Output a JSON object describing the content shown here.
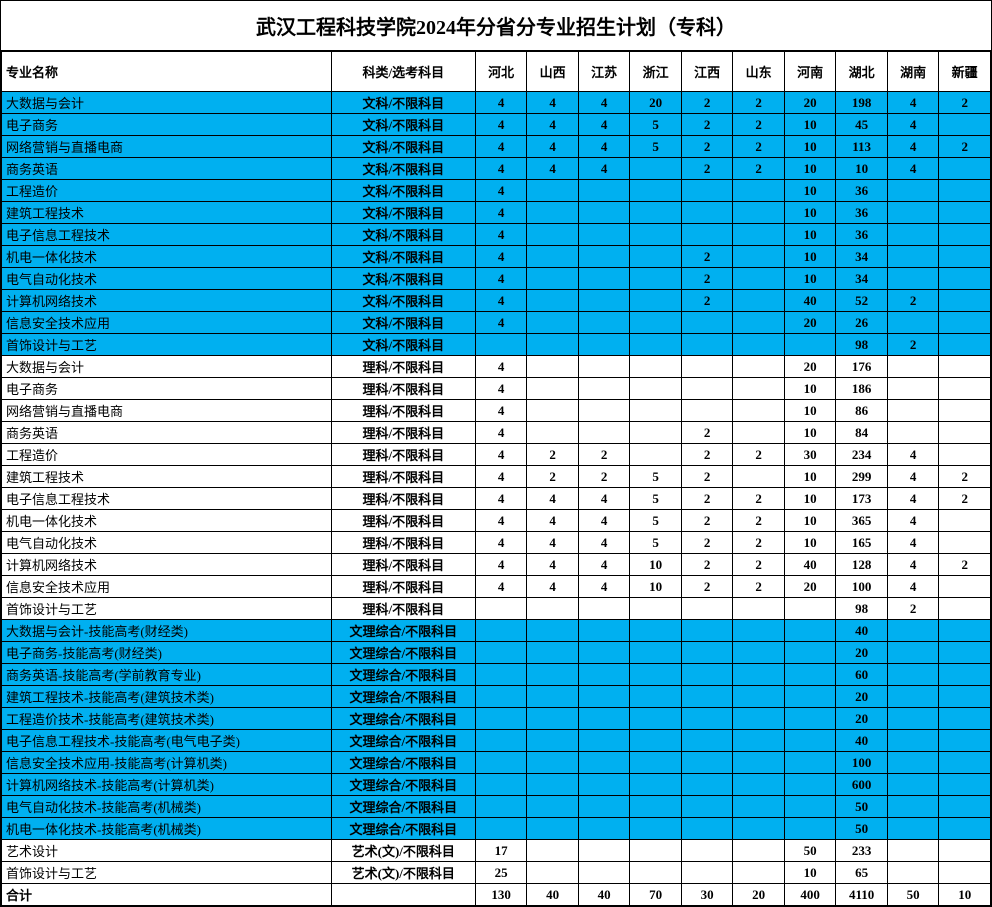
{
  "title": "武汉工程科技学院2024年分省分专业招生计划（专科）",
  "colors": {
    "highlight": "#00b0f0",
    "background": "#ffffff",
    "border": "#000000"
  },
  "columns": [
    {
      "key": "major",
      "label": "专业名称"
    },
    {
      "key": "subject",
      "label": "科类/选考科目"
    },
    {
      "key": "hebei",
      "label": "河北"
    },
    {
      "key": "shanxi",
      "label": "山西"
    },
    {
      "key": "jiangsu",
      "label": "江苏"
    },
    {
      "key": "zhejiang",
      "label": "浙江"
    },
    {
      "key": "jiangxi",
      "label": "江西"
    },
    {
      "key": "shandong",
      "label": "山东"
    },
    {
      "key": "henan",
      "label": "河南"
    },
    {
      "key": "hubei",
      "label": "湖北"
    },
    {
      "key": "hunan",
      "label": "湖南"
    },
    {
      "key": "xinjiang",
      "label": "新疆"
    }
  ],
  "rows": [
    {
      "bg": "blue",
      "major": "大数据与会计",
      "subject": "文科/不限科目",
      "values": [
        "4",
        "4",
        "4",
        "20",
        "2",
        "2",
        "20",
        "198",
        "4",
        "2"
      ]
    },
    {
      "bg": "blue",
      "major": "电子商务",
      "subject": "文科/不限科目",
      "values": [
        "4",
        "4",
        "4",
        "5",
        "2",
        "2",
        "10",
        "45",
        "4",
        ""
      ]
    },
    {
      "bg": "blue",
      "major": "网络营销与直播电商",
      "subject": "文科/不限科目",
      "values": [
        "4",
        "4",
        "4",
        "5",
        "2",
        "2",
        "10",
        "113",
        "4",
        "2"
      ]
    },
    {
      "bg": "blue",
      "major": "商务英语",
      "subject": "文科/不限科目",
      "values": [
        "4",
        "4",
        "4",
        "",
        "2",
        "2",
        "10",
        "10",
        "4",
        ""
      ]
    },
    {
      "bg": "blue",
      "major": "工程造价",
      "subject": "文科/不限科目",
      "values": [
        "4",
        "",
        "",
        "",
        "",
        "",
        "10",
        "36",
        "",
        ""
      ]
    },
    {
      "bg": "blue",
      "major": "建筑工程技术",
      "subject": "文科/不限科目",
      "values": [
        "4",
        "",
        "",
        "",
        "",
        "",
        "10",
        "36",
        "",
        ""
      ]
    },
    {
      "bg": "blue",
      "major": "电子信息工程技术",
      "subject": "文科/不限科目",
      "values": [
        "4",
        "",
        "",
        "",
        "",
        "",
        "10",
        "36",
        "",
        ""
      ]
    },
    {
      "bg": "blue",
      "major": "机电一体化技术",
      "subject": "文科/不限科目",
      "values": [
        "4",
        "",
        "",
        "",
        "2",
        "",
        "10",
        "34",
        "",
        ""
      ]
    },
    {
      "bg": "blue",
      "major": "电气自动化技术",
      "subject": "文科/不限科目",
      "values": [
        "4",
        "",
        "",
        "",
        "2",
        "",
        "10",
        "34",
        "",
        ""
      ]
    },
    {
      "bg": "blue",
      "major": "计算机网络技术",
      "subject": "文科/不限科目",
      "values": [
        "4",
        "",
        "",
        "",
        "2",
        "",
        "40",
        "52",
        "2",
        ""
      ]
    },
    {
      "bg": "blue",
      "major": "信息安全技术应用",
      "subject": "文科/不限科目",
      "values": [
        "4",
        "",
        "",
        "",
        "",
        "",
        "20",
        "26",
        "",
        ""
      ]
    },
    {
      "bg": "blue",
      "major": "首饰设计与工艺",
      "subject": "文科/不限科目",
      "values": [
        "",
        "",
        "",
        "",
        "",
        "",
        "",
        "98",
        "2",
        ""
      ]
    },
    {
      "bg": "white",
      "major": "大数据与会计",
      "subject": "理科/不限科目",
      "values": [
        "4",
        "",
        "",
        "",
        "",
        "",
        "20",
        "176",
        "",
        ""
      ]
    },
    {
      "bg": "white",
      "major": "电子商务",
      "subject": "理科/不限科目",
      "values": [
        "4",
        "",
        "",
        "",
        "",
        "",
        "10",
        "186",
        "",
        ""
      ]
    },
    {
      "bg": "white",
      "major": "网络营销与直播电商",
      "subject": "理科/不限科目",
      "values": [
        "4",
        "",
        "",
        "",
        "",
        "",
        "10",
        "86",
        "",
        ""
      ]
    },
    {
      "bg": "white",
      "major": "商务英语",
      "subject": "理科/不限科目",
      "values": [
        "4",
        "",
        "",
        "",
        "2",
        "",
        "10",
        "84",
        "",
        ""
      ]
    },
    {
      "bg": "white",
      "major": "工程造价",
      "subject": "理科/不限科目",
      "values": [
        "4",
        "2",
        "2",
        "",
        "2",
        "2",
        "30",
        "234",
        "4",
        ""
      ]
    },
    {
      "bg": "white",
      "major": "建筑工程技术",
      "subject": "理科/不限科目",
      "values": [
        "4",
        "2",
        "2",
        "5",
        "2",
        "",
        "10",
        "299",
        "4",
        "2"
      ]
    },
    {
      "bg": "white",
      "major": "电子信息工程技术",
      "subject": "理科/不限科目",
      "values": [
        "4",
        "4",
        "4",
        "5",
        "2",
        "2",
        "10",
        "173",
        "4",
        "2"
      ]
    },
    {
      "bg": "white",
      "major": "机电一体化技术",
      "subject": "理科/不限科目",
      "values": [
        "4",
        "4",
        "4",
        "5",
        "2",
        "2",
        "10",
        "365",
        "4",
        ""
      ]
    },
    {
      "bg": "white",
      "major": "电气自动化技术",
      "subject": "理科/不限科目",
      "values": [
        "4",
        "4",
        "4",
        "5",
        "2",
        "2",
        "10",
        "165",
        "4",
        ""
      ]
    },
    {
      "bg": "white",
      "major": "计算机网络技术",
      "subject": "理科/不限科目",
      "values": [
        "4",
        "4",
        "4",
        "10",
        "2",
        "2",
        "40",
        "128",
        "4",
        "2"
      ]
    },
    {
      "bg": "white",
      "major": "信息安全技术应用",
      "subject": "理科/不限科目",
      "values": [
        "4",
        "4",
        "4",
        "10",
        "2",
        "2",
        "20",
        "100",
        "4",
        ""
      ]
    },
    {
      "bg": "white",
      "major": "首饰设计与工艺",
      "subject": "理科/不限科目",
      "values": [
        "",
        "",
        "",
        "",
        "",
        "",
        "",
        "98",
        "2",
        ""
      ]
    },
    {
      "bg": "blue",
      "major": "大数据与会计-技能高考(财经类)",
      "subject": "文理综合/不限科目",
      "values": [
        "",
        "",
        "",
        "",
        "",
        "",
        "",
        "40",
        "",
        ""
      ]
    },
    {
      "bg": "blue",
      "major": "电子商务-技能高考(财经类)",
      "subject": "文理综合/不限科目",
      "values": [
        "",
        "",
        "",
        "",
        "",
        "",
        "",
        "20",
        "",
        ""
      ]
    },
    {
      "bg": "blue",
      "major": "商务英语-技能高考(学前教育专业)",
      "subject": "文理综合/不限科目",
      "values": [
        "",
        "",
        "",
        "",
        "",
        "",
        "",
        "60",
        "",
        ""
      ]
    },
    {
      "bg": "blue",
      "major": "建筑工程技术-技能高考(建筑技术类)",
      "subject": "文理综合/不限科目",
      "values": [
        "",
        "",
        "",
        "",
        "",
        "",
        "",
        "20",
        "",
        ""
      ]
    },
    {
      "bg": "blue",
      "major": "工程造价技术-技能高考(建筑技术类)",
      "subject": "文理综合/不限科目",
      "values": [
        "",
        "",
        "",
        "",
        "",
        "",
        "",
        "20",
        "",
        ""
      ]
    },
    {
      "bg": "blue",
      "major": "电子信息工程技术-技能高考(电气电子类)",
      "subject": "文理综合/不限科目",
      "values": [
        "",
        "",
        "",
        "",
        "",
        "",
        "",
        "40",
        "",
        ""
      ]
    },
    {
      "bg": "blue",
      "major": "信息安全技术应用-技能高考(计算机类)",
      "subject": "文理综合/不限科目",
      "values": [
        "",
        "",
        "",
        "",
        "",
        "",
        "",
        "100",
        "",
        ""
      ]
    },
    {
      "bg": "blue",
      "major": "计算机网络技术-技能高考(计算机类)",
      "subject": "文理综合/不限科目",
      "values": [
        "",
        "",
        "",
        "",
        "",
        "",
        "",
        "600",
        "",
        ""
      ]
    },
    {
      "bg": "blue",
      "major": "电气自动化技术-技能高考(机械类)",
      "subject": "文理综合/不限科目",
      "values": [
        "",
        "",
        "",
        "",
        "",
        "",
        "",
        "50",
        "",
        ""
      ]
    },
    {
      "bg": "blue",
      "major": "机电一体化技术-技能高考(机械类)",
      "subject": "文理综合/不限科目",
      "values": [
        "",
        "",
        "",
        "",
        "",
        "",
        "",
        "50",
        "",
        ""
      ]
    },
    {
      "bg": "white",
      "major": "艺术设计",
      "subject": "艺术(文)/不限科目",
      "values": [
        "17",
        "",
        "",
        "",
        "",
        "",
        "50",
        "233",
        "",
        ""
      ]
    },
    {
      "bg": "white",
      "major": "首饰设计与工艺",
      "subject": "艺术(文)/不限科目",
      "values": [
        "25",
        "",
        "",
        "",
        "",
        "",
        "10",
        "65",
        "",
        ""
      ]
    }
  ],
  "total": {
    "label": "合计",
    "values": [
      "130",
      "40",
      "40",
      "70",
      "30",
      "20",
      "400",
      "4110",
      "50",
      "10"
    ]
  }
}
